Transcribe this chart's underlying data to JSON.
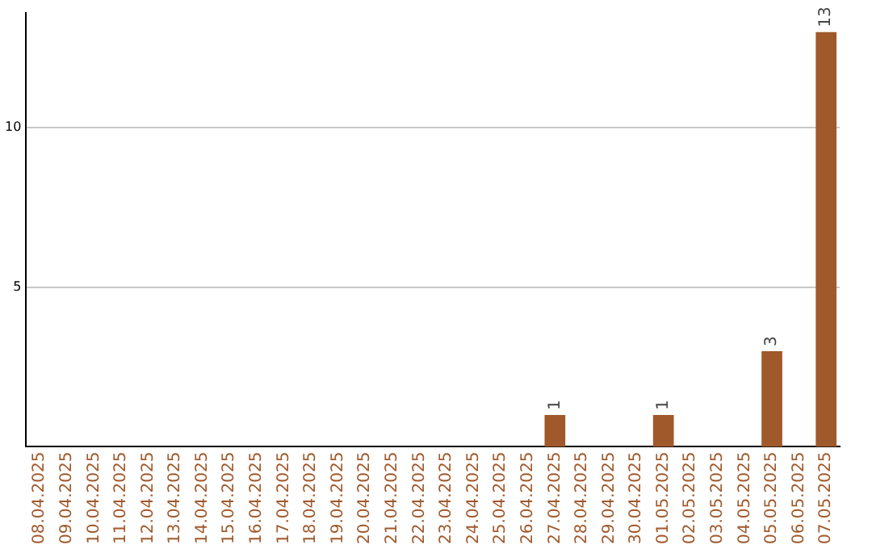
{
  "chart_data": {
    "type": "bar",
    "categories": [
      "08.04.2025",
      "09.04.2025",
      "10.04.2025",
      "11.04.2025",
      "12.04.2025",
      "13.04.2025",
      "14.04.2025",
      "15.04.2025",
      "16.04.2025",
      "17.04.2025",
      "18.04.2025",
      "19.04.2025",
      "20.04.2025",
      "21.04.2025",
      "22.04.2025",
      "23.04.2025",
      "24.04.2025",
      "25.04.2025",
      "26.04.2025",
      "27.04.2025",
      "28.04.2025",
      "29.04.2025",
      "30.04.2025",
      "01.05.2025",
      "02.05.2025",
      "03.05.2025",
      "04.05.2025",
      "05.05.2025",
      "06.05.2025",
      "07.05.2025"
    ],
    "values": [
      0,
      0,
      0,
      0,
      0,
      0,
      0,
      0,
      0,
      0,
      0,
      0,
      0,
      0,
      0,
      0,
      0,
      0,
      0,
      1,
      0,
      0,
      0,
      1,
      0,
      0,
      0,
      3,
      0,
      13
    ],
    "value_labels": [
      null,
      null,
      null,
      null,
      null,
      null,
      null,
      null,
      null,
      null,
      null,
      null,
      null,
      null,
      null,
      null,
      null,
      null,
      null,
      "1",
      null,
      null,
      null,
      "1",
      null,
      null,
      null,
      "3",
      null,
      "13"
    ],
    "color": "#a0592b",
    "ylim": [
      0,
      13.6
    ],
    "yticks": [
      5,
      10
    ],
    "grid": "y"
  }
}
